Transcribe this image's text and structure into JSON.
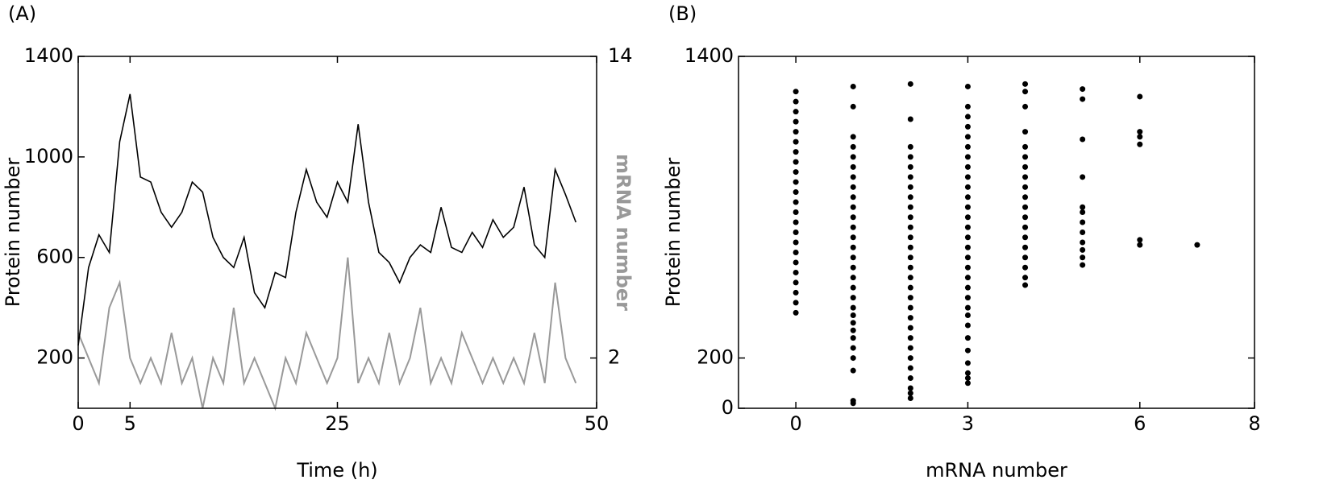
{
  "chart_data": [
    {
      "type": "line",
      "panel": "(A)",
      "x_label": "Time (h)",
      "y_label": "Protein number",
      "y2_label": "mRNA number",
      "xlim": [
        0,
        50
      ],
      "xticks": [
        0,
        5,
        25,
        50
      ],
      "ylim": [
        0,
        1400
      ],
      "yticks": [
        200,
        600,
        1000,
        1400
      ],
      "y2lim": [
        0,
        14
      ],
      "y2ticks": [
        2,
        14
      ],
      "x": [
        0,
        1,
        2,
        3,
        4,
        5,
        6,
        7,
        8,
        9,
        10,
        11,
        12,
        13,
        14,
        15,
        16,
        17,
        18,
        19,
        20,
        21,
        22,
        23,
        24,
        25,
        26,
        27,
        28,
        29,
        30,
        31,
        32,
        33,
        34,
        35,
        36,
        37,
        38,
        39,
        40,
        41,
        42,
        43,
        44,
        45,
        46,
        47,
        48
      ],
      "series": [
        {
          "color": "#999999",
          "axis": "y2",
          "values": [
            3,
            2,
            1,
            4,
            5,
            2,
            1,
            2,
            1,
            3,
            1,
            2,
            0,
            2,
            1,
            4,
            1,
            2,
            1,
            0,
            2,
            1,
            3,
            2,
            1,
            2,
            6,
            1,
            2,
            1,
            3,
            1,
            2,
            4,
            1,
            2,
            1,
            3,
            2,
            1,
            2,
            1,
            2,
            1,
            3,
            1,
            5,
            2,
            1
          ]
        },
        {
          "color": "#000000",
          "values": [
            250,
            560,
            690,
            620,
            1060,
            1250,
            920,
            900,
            780,
            720,
            780,
            900,
            860,
            680,
            600,
            560,
            680,
            460,
            400,
            540,
            520,
            780,
            950,
            820,
            760,
            900,
            820,
            1130,
            820,
            620,
            580,
            500,
            600,
            650,
            620,
            800,
            640,
            620,
            700,
            640,
            750,
            680,
            720,
            880,
            650,
            600,
            950,
            850,
            740
          ]
        }
      ]
    },
    {
      "type": "scatter",
      "panel": "(B)",
      "x_label": "mRNA number",
      "y_label": "Protein number",
      "xlim": [
        -1,
        8
      ],
      "xticks": [
        0,
        3,
        6,
        8
      ],
      "ylim": [
        0,
        1400
      ],
      "yticks": [
        0,
        200,
        1400
      ],
      "color": "#000000",
      "series": [
        {
          "x": 0,
          "values": [
            380,
            420,
            460,
            500,
            540,
            580,
            620,
            660,
            700,
            740,
            780,
            820,
            860,
            900,
            940,
            980,
            1020,
            1060,
            1100,
            1140,
            1180,
            1220,
            1260
          ]
        },
        {
          "x": 1,
          "values": [
            20,
            30,
            150,
            200,
            240,
            280,
            310,
            340,
            370,
            400,
            440,
            480,
            520,
            560,
            600,
            640,
            680,
            720,
            760,
            800,
            840,
            880,
            920,
            960,
            1000,
            1040,
            1080,
            1200,
            1280
          ]
        },
        {
          "x": 2,
          "values": [
            40,
            60,
            80,
            120,
            160,
            200,
            240,
            280,
            320,
            360,
            400,
            440,
            480,
            520,
            560,
            600,
            640,
            680,
            720,
            760,
            800,
            840,
            880,
            920,
            960,
            1000,
            1040,
            1150,
            1290
          ]
        },
        {
          "x": 3,
          "values": [
            100,
            120,
            140,
            180,
            230,
            280,
            330,
            370,
            400,
            440,
            480,
            520,
            560,
            600,
            640,
            680,
            720,
            760,
            800,
            840,
            880,
            920,
            960,
            1000,
            1040,
            1080,
            1120,
            1160,
            1200,
            1280
          ]
        },
        {
          "x": 4,
          "values": [
            490,
            520,
            560,
            600,
            640,
            680,
            720,
            760,
            800,
            840,
            880,
            920,
            960,
            1000,
            1040,
            1100,
            1200,
            1260,
            1290
          ]
        },
        {
          "x": 5,
          "values": [
            570,
            600,
            630,
            660,
            700,
            740,
            780,
            800,
            920,
            1070,
            1230,
            1270
          ]
        },
        {
          "x": 6,
          "values": [
            650,
            670,
            1050,
            1080,
            1100,
            1240
          ]
        },
        {
          "x": 7,
          "values": [
            650
          ]
        }
      ]
    }
  ]
}
